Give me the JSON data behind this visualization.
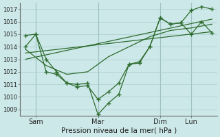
{
  "xlabel": "Pression niveau de la mer( hPa )",
  "bg_color": "#cce8e8",
  "grid_color": "#aacccc",
  "line_color": "#2d6b2d",
  "ylim": [
    1008.5,
    1017.5
  ],
  "yticks": [
    1009,
    1010,
    1011,
    1012,
    1013,
    1014,
    1015,
    1016,
    1017
  ],
  "xtick_labels": [
    "Sam",
    "Mar",
    "Dim",
    "Lun"
  ],
  "xtick_positions": [
    3,
    15,
    27,
    33
  ],
  "x_vlines": [
    3,
    15,
    27,
    33
  ],
  "xlim": [
    0,
    38
  ],
  "main_x": [
    1,
    3,
    5,
    7,
    9,
    11,
    13,
    15,
    17,
    19,
    21,
    23,
    25,
    27,
    29,
    31,
    33,
    35,
    37
  ],
  "main_y": [
    1014.9,
    1015.0,
    1013.0,
    1012.0,
    1011.1,
    1011.0,
    1011.1,
    1008.6,
    1009.5,
    1010.2,
    1012.6,
    1012.8,
    1014.0,
    1016.3,
    1015.8,
    1015.9,
    1016.9,
    1017.2,
    1017.0
  ],
  "line1_x": [
    1,
    37
  ],
  "line1_y": [
    1013.5,
    1015.2
  ],
  "line2_x": [
    1,
    37
  ],
  "line2_y": [
    1013.0,
    1016.2
  ],
  "line3_x": [
    1,
    5,
    9,
    13,
    17,
    21,
    25,
    29,
    33,
    37
  ],
  "line3_y": [
    1013.8,
    1012.5,
    1011.8,
    1012.0,
    1013.2,
    1014.0,
    1014.8,
    1015.3,
    1015.5,
    1015.8
  ],
  "main2_x": [
    1,
    3,
    5,
    7,
    9,
    11,
    13,
    15,
    17,
    19,
    21,
    23,
    25,
    27,
    29,
    31,
    33,
    35,
    37
  ],
  "main2_y": [
    1014.0,
    1015.0,
    1012.0,
    1011.8,
    1011.1,
    1010.8,
    1010.9,
    1009.8,
    1010.4,
    1011.1,
    1012.6,
    1012.7,
    1014.0,
    1016.3,
    1015.8,
    1015.9,
    1015.0,
    1016.0,
    1015.1
  ]
}
